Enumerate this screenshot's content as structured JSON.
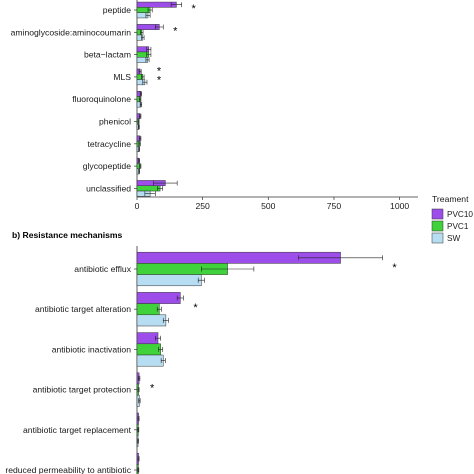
{
  "colors": {
    "PVC10": "#9d4eea",
    "PVC1": "#3fd23a",
    "SW": "#b6ddf2"
  },
  "legend": {
    "title": "Treament",
    "items": [
      "PVC10",
      "PVC1",
      "SW"
    ]
  },
  "chart_data": [
    {
      "type": "bar",
      "orientation": "horizontal",
      "title": "",
      "xlim": [
        0,
        1070
      ],
      "xticks": [
        0,
        250,
        500,
        750,
        1000
      ],
      "categories": [
        "peptide",
        "aminoglycoside:aminocoumarin",
        "beta−lactam",
        "MLS",
        "fluoroquinolone",
        "phenicol",
        "tetracycline",
        "glycopeptide",
        "unclassified"
      ],
      "series": [
        {
          "name": "PVC10",
          "values": [
            150,
            85,
            45,
            12,
            15,
            12,
            12,
            8,
            108
          ],
          "errors": [
            20,
            15,
            8,
            4,
            3,
            3,
            3,
            2,
            45
          ]
        },
        {
          "name": "PVC1",
          "values": [
            50,
            18,
            45,
            22,
            12,
            6,
            10,
            12,
            88
          ],
          "errors": [
            8,
            5,
            8,
            5,
            3,
            2,
            3,
            3,
            10
          ]
        },
        {
          "name": "SW",
          "values": [
            42,
            22,
            40,
            30,
            15,
            7,
            8,
            8,
            50
          ],
          "errors": [
            8,
            5,
            6,
            8,
            3,
            2,
            2,
            2,
            20
          ]
        }
      ],
      "significance": [
        "*",
        "*",
        "",
        "*\n*",
        "",
        "",
        "",
        "",
        ""
      ]
    },
    {
      "type": "bar",
      "orientation": "horizontal",
      "title": "b) Resistance mechanisms",
      "xlim": [
        0,
        1070
      ],
      "categories": [
        "antibiotic efflux",
        "antibiotic target alteration",
        "antibiotic inactivation",
        "antibiotic target protection",
        "antibiotic target replacement",
        "reduced permeability to antibiotic"
      ],
      "series": [
        {
          "name": "PVC10",
          "values": [
            775,
            165,
            80,
            8,
            6,
            6
          ],
          "errors": [
            160,
            12,
            10,
            3,
            2,
            2
          ]
        },
        {
          "name": "PVC1",
          "values": [
            345,
            85,
            90,
            6,
            5,
            5
          ],
          "errors": [
            100,
            8,
            8,
            2,
            2,
            2
          ]
        },
        {
          "name": "SW",
          "values": [
            245,
            110,
            100,
            9,
            4,
            4
          ],
          "errors": [
            12,
            10,
            8,
            3,
            2,
            2
          ]
        }
      ],
      "significance": [
        "*",
        "*",
        "",
        "*",
        "",
        ""
      ]
    }
  ]
}
